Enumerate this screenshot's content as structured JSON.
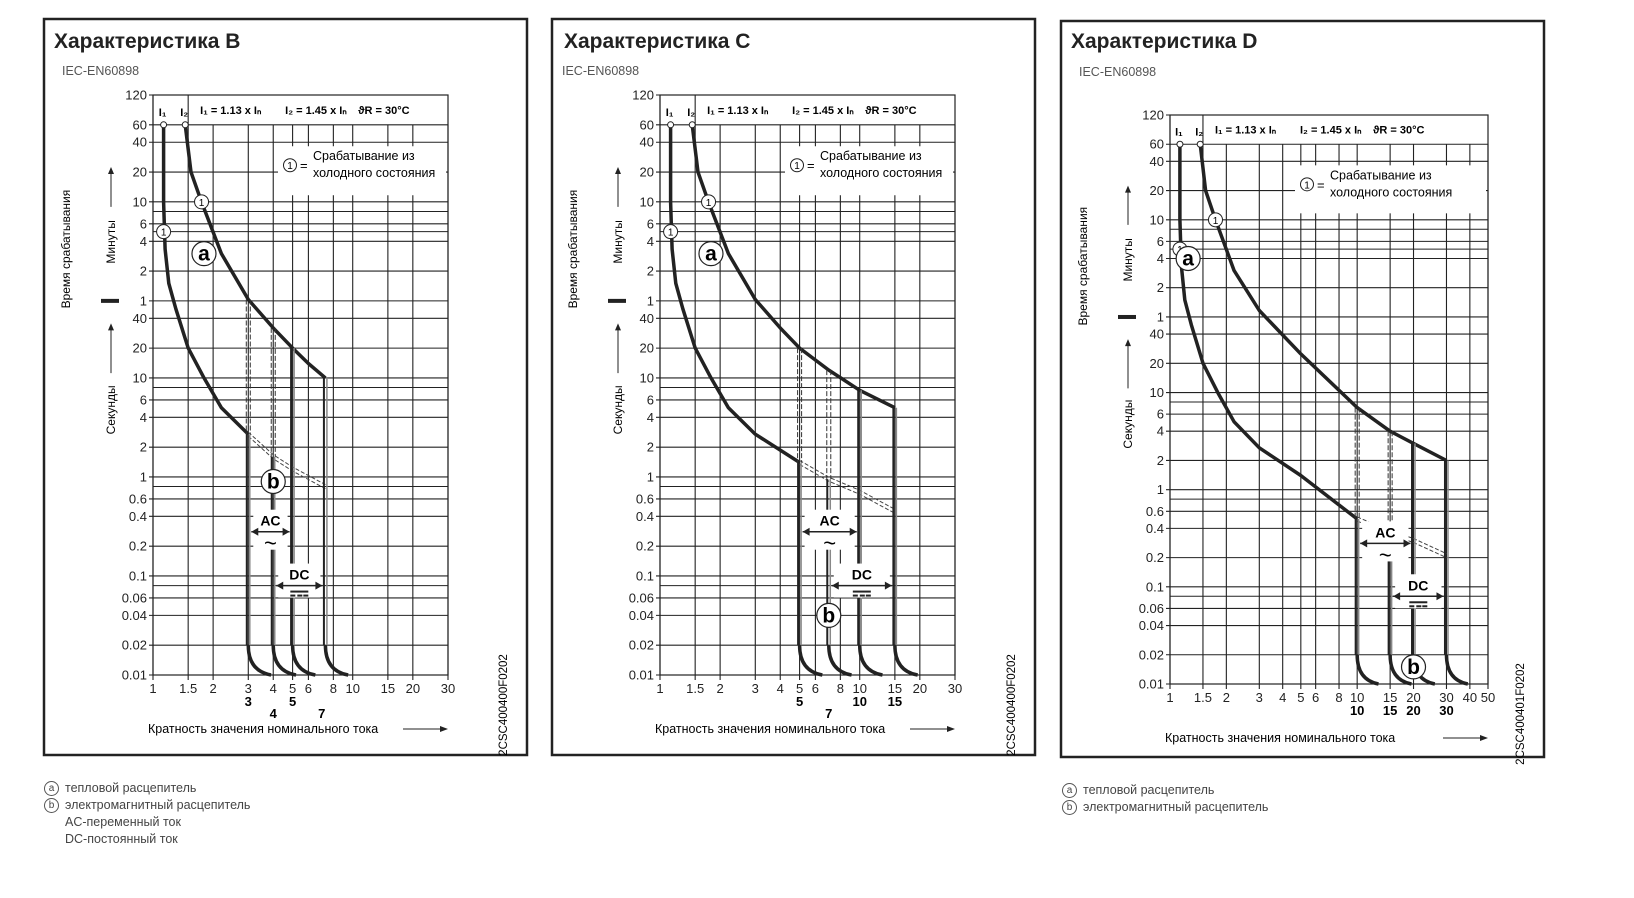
{
  "footnotes": {
    "a_mark": "a",
    "a_text": "тепловой расцепитель",
    "b_mark": "b",
    "b_text": "электромагнитный расцепитель",
    "ac_text": "AC-переменный ток",
    "dc_text": "DC-постоянный ток"
  },
  "chart_data": [
    {
      "type": "line",
      "title": "Характеристика B",
      "standard": "IEC-EN60898",
      "formula": {
        "i1": "I₁ = 1.13 x Iₙ",
        "i2": "I₂ = 1.45 x Iₙ",
        "temp": "ϑR = 30°C"
      },
      "i1_label": "I₁",
      "i2_label": "I₂",
      "note_mark": "1",
      "note_eq": "=",
      "note_line1": "Срабатывание из",
      "note_line2": "холодного состояния",
      "ylabel": "Время срабатывания",
      "ylabel_minutes": "Минуты",
      "ylabel_seconds": "Секунды",
      "xlabel": "Кратность значения номинального тока",
      "code": "2CSC400400F0202",
      "xlim": [
        1,
        30
      ],
      "x_ticks": [
        1,
        1.5,
        2,
        3,
        4,
        5,
        6,
        8,
        10,
        15,
        20,
        30
      ],
      "ylim_seconds": [
        0.01,
        7200
      ],
      "bold_labels_row1": [
        3,
        5
      ],
      "bold_labels_row2": [
        4,
        7
      ],
      "ac_range": [
        3,
        5
      ],
      "dc_range": [
        4,
        7.3
      ],
      "ac_label": "AC",
      "ac_symbol": "~",
      "dc_label": "DC",
      "thermal_lower": [
        [
          1.13,
          3600
        ],
        [
          1.13,
          600
        ],
        [
          1.15,
          200
        ],
        [
          1.2,
          90
        ],
        [
          1.3,
          50
        ],
        [
          1.5,
          20
        ],
        [
          1.8,
          10
        ],
        [
          2.2,
          5
        ],
        [
          3,
          2.7
        ]
      ],
      "thermal_upper": [
        [
          1.45,
          3600
        ],
        [
          1.55,
          1200
        ],
        [
          1.75,
          600
        ],
        [
          2.2,
          180
        ],
        [
          3,
          62
        ],
        [
          4,
          32
        ],
        [
          5,
          20
        ],
        [
          6,
          14
        ],
        [
          7.3,
          10
        ]
      ],
      "thermal_extension": [
        [
          3,
          2.7
        ],
        [
          4,
          1.6
        ],
        [
          5,
          1.2
        ],
        [
          7.3,
          0.8
        ]
      ],
      "magnetic_lines": [
        {
          "x": 3,
          "solid_from": 2.7,
          "dashed_to": 62
        },
        {
          "x": 4,
          "solid_from": 1.6,
          "dashed_to": 32
        },
        {
          "x": 5,
          "solid_from": 20
        },
        {
          "x": 7.3,
          "solid_from": 10
        }
      ],
      "marker_a": [
        1.8,
        180
      ],
      "marker_b": [
        4,
        0.9
      ],
      "cold_marks": [
        [
          1.13,
          300
        ],
        [
          1.75,
          600
        ]
      ]
    },
    {
      "type": "line",
      "title": "Характеристика C",
      "standard": "IEC-EN60898",
      "formula": {
        "i1": "I₁ = 1.13 x Iₙ",
        "i2": "I₂ = 1.45 x Iₙ",
        "temp": "ϑR = 30°C"
      },
      "i1_label": "I₁",
      "i2_label": "I₂",
      "note_mark": "1",
      "note_eq": "=",
      "note_line1": "Срабатывание из",
      "note_line2": "холодного состояния",
      "ylabel": "Время срабатывания",
      "ylabel_minutes": "Минуты",
      "ylabel_seconds": "Секунды",
      "xlabel": "Кратность значения номинального тока",
      "code": "2CSC400400F0202",
      "xlim": [
        1,
        30
      ],
      "x_ticks": [
        1,
        1.5,
        2,
        3,
        4,
        5,
        6,
        8,
        10,
        15,
        20,
        30
      ],
      "ylim_seconds": [
        0.01,
        7200
      ],
      "bold_labels_row1": [
        5,
        10,
        15
      ],
      "bold_labels_row2": [
        7
      ],
      "ac_range": [
        5,
        10
      ],
      "dc_range": [
        7,
        15
      ],
      "ac_label": "AC",
      "ac_symbol": "~",
      "dc_label": "DC",
      "thermal_lower": [
        [
          1.13,
          3600
        ],
        [
          1.13,
          600
        ],
        [
          1.15,
          200
        ],
        [
          1.2,
          90
        ],
        [
          1.3,
          50
        ],
        [
          1.5,
          20
        ],
        [
          1.8,
          10
        ],
        [
          2.2,
          5
        ],
        [
          3,
          2.7
        ],
        [
          5,
          1.4
        ]
      ],
      "thermal_upper": [
        [
          1.45,
          3600
        ],
        [
          1.55,
          1200
        ],
        [
          1.75,
          600
        ],
        [
          2.2,
          180
        ],
        [
          3,
          62
        ],
        [
          4,
          32
        ],
        [
          5,
          20
        ],
        [
          7,
          12
        ],
        [
          10,
          7.5
        ],
        [
          15,
          5
        ]
      ],
      "thermal_extension": [
        [
          5,
          1.4
        ],
        [
          7,
          0.95
        ],
        [
          10,
          0.7
        ],
        [
          15,
          0.45
        ]
      ],
      "magnetic_lines": [
        {
          "x": 5,
          "solid_from": 1.4,
          "dashed_to": 20
        },
        {
          "x": 7,
          "solid_from": 0.95,
          "dashed_to": 12
        },
        {
          "x": 10,
          "solid_from": 7.5
        },
        {
          "x": 15,
          "solid_from": 5
        }
      ],
      "marker_a": [
        1.8,
        180
      ],
      "marker_b": [
        7,
        0.04
      ],
      "cold_marks": [
        [
          1.13,
          300
        ],
        [
          1.75,
          600
        ]
      ]
    },
    {
      "type": "line",
      "title": "Характеристика D",
      "standard": "IEC-EN60898",
      "formula": {
        "i1": "I₁ = 1.13 x Iₙ",
        "i2": "I₂ = 1.45 x Iₙ",
        "temp": "ϑR = 30°C"
      },
      "i1_label": "I₁",
      "i2_label": "I₂",
      "note_mark": "1",
      "note_eq": "=",
      "note_line1": "Срабатывание из",
      "note_line2": "холодного состояния",
      "ylabel": "Время срабатывания",
      "ylabel_minutes": "Минуты",
      "ylabel_seconds": "Секунды",
      "xlabel": "Кратность значения номинального тока",
      "code": "2CSC400401F0202",
      "xlim": [
        1,
        50
      ],
      "x_ticks": [
        1,
        1.5,
        2,
        3,
        4,
        5,
        6,
        8,
        10,
        15,
        20,
        30,
        40,
        50
      ],
      "ylim_seconds": [
        0.01,
        7200
      ],
      "bold_labels_row1": [
        10,
        15,
        20,
        30
      ],
      "bold_labels_row2": [],
      "ac_range": [
        10,
        20
      ],
      "dc_range": [
        15,
        30
      ],
      "ac_label": "AC",
      "ac_symbol": "~",
      "dc_label": "DC",
      "thermal_lower": [
        [
          1.13,
          3600
        ],
        [
          1.13,
          600
        ],
        [
          1.15,
          200
        ],
        [
          1.2,
          90
        ],
        [
          1.3,
          50
        ],
        [
          1.5,
          20
        ],
        [
          1.8,
          10
        ],
        [
          2.2,
          5
        ],
        [
          3,
          2.7
        ],
        [
          5,
          1.4
        ],
        [
          10,
          0.5
        ]
      ],
      "thermal_upper": [
        [
          1.45,
          3600
        ],
        [
          1.55,
          1200
        ],
        [
          1.75,
          600
        ],
        [
          2.2,
          180
        ],
        [
          3,
          70
        ],
        [
          5,
          25
        ],
        [
          10,
          7
        ],
        [
          15,
          4
        ],
        [
          20,
          3
        ],
        [
          30,
          2
        ]
      ],
      "thermal_extension": [
        [
          10,
          0.5
        ],
        [
          15,
          0.36
        ],
        [
          20,
          0.3
        ],
        [
          30,
          0.21
        ]
      ],
      "magnetic_lines": [
        {
          "x": 10,
          "solid_from": 0.5,
          "dashed_to": 7
        },
        {
          "x": 15,
          "solid_from": 0.36,
          "dashed_to": 4
        },
        {
          "x": 20,
          "solid_from": 3
        },
        {
          "x": 30,
          "solid_from": 2
        }
      ],
      "marker_a": [
        1.25,
        240
      ],
      "marker_b": [
        20,
        0.015
      ],
      "cold_marks": [
        [
          1.13,
          300
        ],
        [
          1.75,
          600
        ]
      ]
    }
  ]
}
